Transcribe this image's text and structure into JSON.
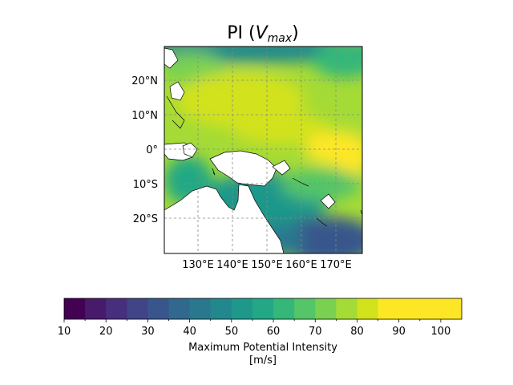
{
  "title": "PI (",
  "title_var": "V",
  "title_sub": "max",
  "title_close": ")",
  "map": {
    "lat_ticks": [
      "20°N",
      "10°N",
      "0°",
      "10°S",
      "20°S"
    ],
    "lon_ticks": [
      "130°E",
      "140°E",
      "150°E",
      "160°E",
      "170°E"
    ],
    "lon_range": [
      121,
      179
    ],
    "lat_range": [
      -30,
      30
    ],
    "gridlines": true,
    "field": "maximum potential intensity"
  },
  "colorbar": {
    "min": 10,
    "max": 105,
    "step": 5,
    "ticks": [
      "10",
      "20",
      "30",
      "40",
      "50",
      "60",
      "70",
      "80",
      "90",
      "100"
    ],
    "label_line1": "Maximum Potential Intensity",
    "label_line2": "[m/s]",
    "colors": [
      "#440154",
      "#481a6c",
      "#472f7d",
      "#414487",
      "#39568c",
      "#31688e",
      "#2a788e",
      "#23888e",
      "#1f988b",
      "#22a884",
      "#35b779",
      "#54c568",
      "#7ad151",
      "#a5db36",
      "#d2e21b",
      "#fde725",
      "#fde725"
    ]
  }
}
